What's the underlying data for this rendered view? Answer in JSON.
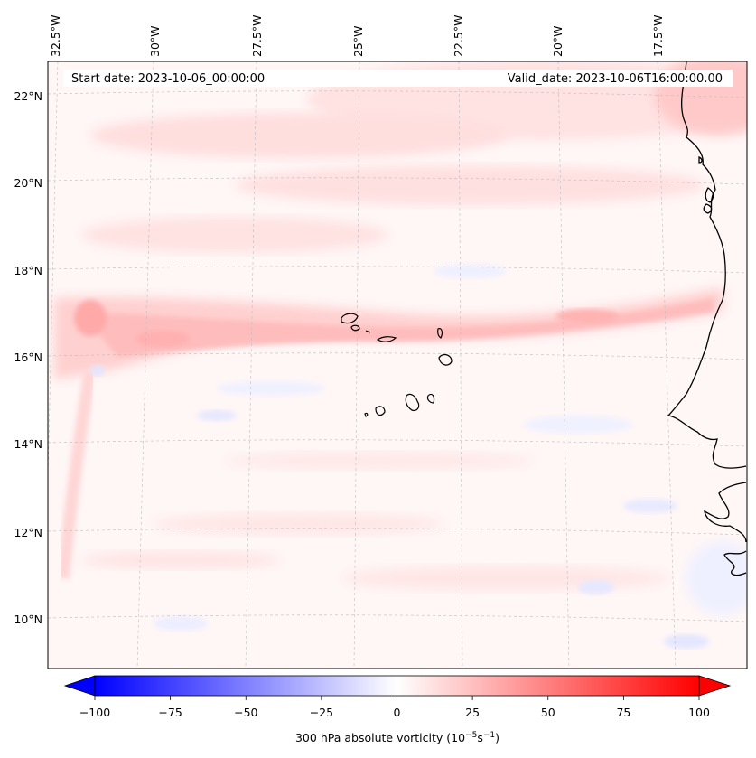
{
  "map": {
    "start_date_text": "Start date: 2023-10-06_00:00:00",
    "valid_date_text": "Valid_date: 2023-10-06T16:00:00.00",
    "lon_labels": [
      "32.5°W",
      "30°W",
      "27.5°W",
      "25°W",
      "22.5°W",
      "20°W",
      "17.5°W"
    ],
    "lat_labels": [
      "22°N",
      "20°N",
      "18°N",
      "16°N",
      "14°N",
      "12°N",
      "10°N"
    ],
    "gridlines": true,
    "colormap": "bwr",
    "field_description_colors": {
      "negative": "#0000ff",
      "zero": "#ffffff",
      "positive": "#ff0000"
    }
  },
  "colorbar": {
    "ticks": [
      "−100",
      "−75",
      "−50",
      "−25",
      "0",
      "25",
      "50",
      "75",
      "100"
    ],
    "label": "300 hPa absolute vorticity (10",
    "label_exp1": "−5",
    "label_mid": "s",
    "label_exp2": "−1",
    "label_close": ")",
    "range": [
      -100,
      100
    ],
    "extend": "both"
  }
}
